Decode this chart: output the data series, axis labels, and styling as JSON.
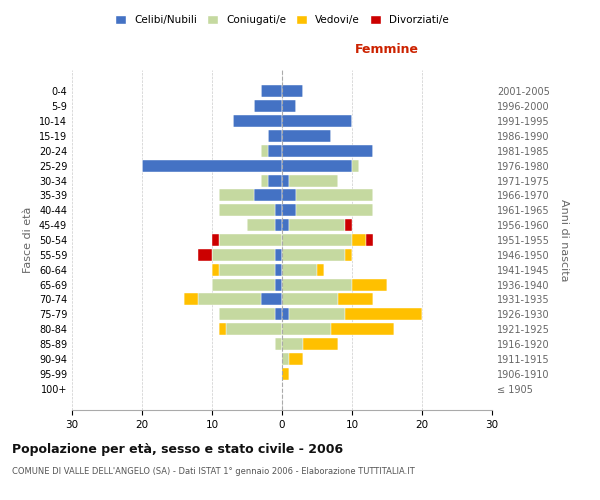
{
  "age_groups": [
    "100+",
    "95-99",
    "90-94",
    "85-89",
    "80-84",
    "75-79",
    "70-74",
    "65-69",
    "60-64",
    "55-59",
    "50-54",
    "45-49",
    "40-44",
    "35-39",
    "30-34",
    "25-29",
    "20-24",
    "15-19",
    "10-14",
    "5-9",
    "0-4"
  ],
  "birth_years": [
    "≤ 1905",
    "1906-1910",
    "1911-1915",
    "1916-1920",
    "1921-1925",
    "1926-1930",
    "1931-1935",
    "1936-1940",
    "1941-1945",
    "1946-1950",
    "1951-1955",
    "1956-1960",
    "1961-1965",
    "1966-1970",
    "1971-1975",
    "1976-1980",
    "1981-1985",
    "1986-1990",
    "1991-1995",
    "1996-2000",
    "2001-2005"
  ],
  "colors": {
    "single": "#4472c4",
    "married": "#c5d9a0",
    "widowed": "#ffc000",
    "divorced": "#cc0000"
  },
  "male": {
    "single": [
      0,
      0,
      0,
      0,
      0,
      1,
      3,
      1,
      1,
      1,
      0,
      1,
      1,
      4,
      2,
      20,
      2,
      2,
      7,
      4,
      3
    ],
    "married": [
      0,
      0,
      0,
      1,
      8,
      8,
      9,
      9,
      8,
      9,
      9,
      4,
      8,
      5,
      1,
      0,
      1,
      0,
      0,
      0,
      0
    ],
    "widowed": [
      0,
      0,
      0,
      0,
      1,
      0,
      2,
      0,
      1,
      0,
      0,
      0,
      0,
      0,
      0,
      0,
      0,
      0,
      0,
      0,
      0
    ],
    "divorced": [
      0,
      0,
      0,
      0,
      0,
      0,
      0,
      0,
      0,
      2,
      1,
      0,
      0,
      0,
      0,
      0,
      0,
      0,
      0,
      0,
      0
    ]
  },
  "female": {
    "single": [
      0,
      0,
      0,
      0,
      0,
      1,
      0,
      0,
      0,
      0,
      0,
      1,
      2,
      2,
      1,
      10,
      13,
      7,
      10,
      2,
      3
    ],
    "married": [
      0,
      0,
      1,
      3,
      7,
      8,
      8,
      10,
      5,
      9,
      10,
      8,
      11,
      11,
      7,
      1,
      0,
      0,
      0,
      0,
      0
    ],
    "widowed": [
      0,
      1,
      2,
      5,
      9,
      11,
      5,
      5,
      1,
      1,
      2,
      0,
      0,
      0,
      0,
      0,
      0,
      0,
      0,
      0,
      0
    ],
    "divorced": [
      0,
      0,
      0,
      0,
      0,
      0,
      0,
      0,
      0,
      0,
      1,
      1,
      0,
      0,
      0,
      0,
      0,
      0,
      0,
      0,
      0
    ]
  },
  "xlim": 30,
  "title": "Popolazione per età, sesso e stato civile - 2006",
  "subtitle": "COMUNE DI VALLE DELL'ANGELO (SA) - Dati ISTAT 1° gennaio 2006 - Elaborazione TUTTITALIA.IT",
  "ylabel_left": "Fasce di età",
  "ylabel_right": "Anni di nascita",
  "xlabel_female": "Femmine",
  "figsize": [
    6.0,
    5.0
  ],
  "dpi": 100
}
